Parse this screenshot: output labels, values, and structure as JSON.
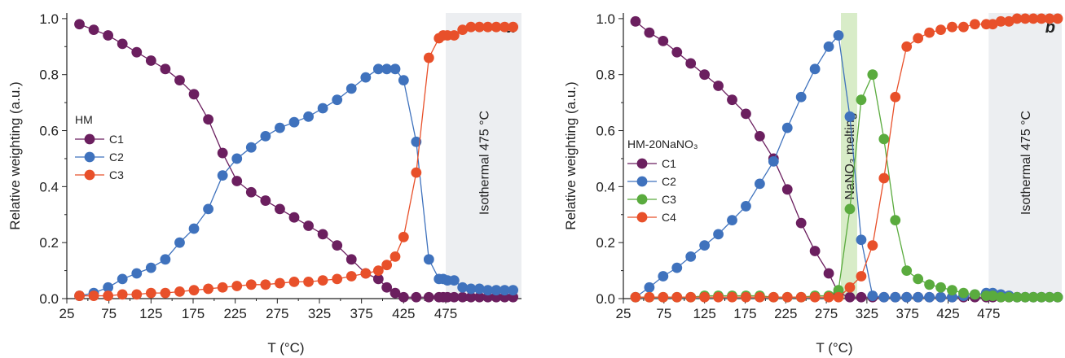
{
  "chart_data": [
    {
      "type": "line",
      "panel_letter": "a",
      "xlabel": "T (°C)",
      "ylabel": "Relative weighting (a.u.)",
      "xlim": [
        25,
        565
      ],
      "ylim": [
        0,
        1.02
      ],
      "x_ticks": [
        "25",
        "75",
        "125",
        "175",
        "225",
        "275",
        "325",
        "375",
        "425",
        "475"
      ],
      "y_ticks": [
        "0.0",
        "0.2",
        "0.4",
        "0.6",
        "0.8",
        "1.0"
      ],
      "legend_title": "HM",
      "legend_position": "middle-left",
      "shaded_regions": [
        {
          "label": "Isothermal  475 °C",
          "color": "#eceef1",
          "x_start": 475,
          "x_end": 565
        }
      ],
      "x": [
        40,
        57,
        74,
        91,
        108,
        125,
        142,
        159,
        176,
        193,
        210,
        227,
        244,
        261,
        278,
        295,
        312,
        329,
        346,
        363,
        380,
        395,
        405,
        415,
        425,
        440,
        455,
        467,
        472,
        477,
        485,
        495,
        505,
        515,
        525,
        535,
        545,
        555
      ],
      "series": [
        {
          "name": "C1",
          "color": "#6b1f5f",
          "values": [
            0.98,
            0.96,
            0.94,
            0.91,
            0.88,
            0.85,
            0.82,
            0.78,
            0.73,
            0.64,
            0.52,
            0.42,
            0.38,
            0.35,
            0.32,
            0.29,
            0.26,
            0.23,
            0.19,
            0.14,
            0.09,
            0.07,
            0.04,
            0.02,
            0.005,
            0.005,
            0.005,
            0.005,
            0.005,
            0.005,
            0.005,
            0.005,
            0.005,
            0.005,
            0.005,
            0.005,
            0.005,
            0.005
          ]
        },
        {
          "name": "C2",
          "color": "#3f72bd",
          "values": [
            0.01,
            0.02,
            0.04,
            0.07,
            0.09,
            0.11,
            0.14,
            0.2,
            0.25,
            0.32,
            0.44,
            0.5,
            0.54,
            0.58,
            0.61,
            0.63,
            0.65,
            0.68,
            0.71,
            0.75,
            0.79,
            0.82,
            0.82,
            0.82,
            0.78,
            0.56,
            0.14,
            0.07,
            0.07,
            0.065,
            0.065,
            0.04,
            0.035,
            0.035,
            0.03,
            0.03,
            0.03,
            0.03
          ]
        },
        {
          "name": "C3",
          "color": "#e8502a",
          "values": [
            0.01,
            0.01,
            0.01,
            0.015,
            0.015,
            0.02,
            0.02,
            0.025,
            0.03,
            0.035,
            0.04,
            0.045,
            0.05,
            0.05,
            0.055,
            0.06,
            0.06,
            0.065,
            0.07,
            0.08,
            0.09,
            0.1,
            0.12,
            0.15,
            0.22,
            0.45,
            0.86,
            0.93,
            0.94,
            0.94,
            0.94,
            0.96,
            0.97,
            0.97,
            0.97,
            0.97,
            0.97,
            0.97
          ]
        }
      ]
    },
    {
      "type": "line",
      "panel_letter": "b",
      "xlabel": "T (°C)",
      "ylabel": "Relative weighting (a.u.)",
      "xlim": [
        25,
        565
      ],
      "ylim": [
        0,
        1.02
      ],
      "x_ticks": [
        "25",
        "75",
        "125",
        "175",
        "225",
        "275",
        "325",
        "375",
        "425",
        "475"
      ],
      "y_ticks": [
        "0.0",
        "0.2",
        "0.4",
        "0.6",
        "0.8",
        "1.0"
      ],
      "legend_title": "HM-20NaNO₃",
      "legend_position": "middle-left",
      "shaded_regions": [
        {
          "label": "NaNO₃ melting",
          "color": "#d8ecc8",
          "x_start": 293,
          "x_end": 313
        },
        {
          "label": "Isothermal  475 °C",
          "color": "#eceef1",
          "x_start": 475,
          "x_end": 565
        }
      ],
      "x": [
        40,
        57,
        74,
        91,
        108,
        125,
        142,
        159,
        176,
        193,
        210,
        227,
        244,
        261,
        278,
        290,
        304,
        318,
        332,
        346,
        360,
        374,
        388,
        402,
        416,
        430,
        444,
        458,
        472,
        480,
        490,
        500,
        510,
        520,
        530,
        540,
        550,
        560
      ],
      "series": [
        {
          "name": "C1",
          "color": "#6b1f5f",
          "values": [
            0.99,
            0.95,
            0.92,
            0.88,
            0.84,
            0.8,
            0.76,
            0.71,
            0.66,
            0.58,
            0.5,
            0.39,
            0.27,
            0.17,
            0.09,
            0.02,
            0.005,
            0.005,
            0.005,
            0.005,
            0.005,
            0.005,
            0.005,
            0.005,
            0.005,
            0.005,
            0.005,
            0.005,
            0.005,
            0.005,
            0.005,
            0.005,
            0.005,
            0.005,
            0.005,
            0.005,
            0.005,
            0.005
          ]
        },
        {
          "name": "C2",
          "color": "#3f72bd",
          "values": [
            0.005,
            0.04,
            0.08,
            0.11,
            0.15,
            0.19,
            0.23,
            0.28,
            0.33,
            0.41,
            0.49,
            0.61,
            0.72,
            0.82,
            0.9,
            0.94,
            0.65,
            0.21,
            0.01,
            0.005,
            0.005,
            0.005,
            0.005,
            0.005,
            0.005,
            0.005,
            0.01,
            0.015,
            0.02,
            0.02,
            0.015,
            0.01,
            0.005,
            0.005,
            0.005,
            0.005,
            0.005,
            0.005
          ]
        },
        {
          "name": "C3",
          "color": "#5aab3e",
          "values": [
            0.005,
            0.005,
            0.005,
            0.005,
            0.005,
            0.01,
            0.01,
            0.01,
            0.01,
            0.01,
            0.005,
            0.005,
            0.005,
            0.01,
            0.01,
            0.03,
            0.32,
            0.71,
            0.8,
            0.57,
            0.28,
            0.1,
            0.07,
            0.05,
            0.04,
            0.03,
            0.02,
            0.015,
            0.01,
            0.01,
            0.005,
            0.005,
            0.005,
            0.005,
            0.005,
            0.005,
            0.005,
            0.005
          ]
        },
        {
          "name": "C4",
          "color": "#e8502a",
          "values": [
            0.005,
            0.005,
            0.005,
            0.005,
            0.005,
            0.005,
            0.005,
            0.005,
            0.005,
            0.005,
            0.005,
            0.005,
            0.005,
            0.005,
            0.005,
            0.005,
            0.04,
            0.08,
            0.19,
            0.43,
            0.72,
            0.9,
            0.93,
            0.95,
            0.96,
            0.97,
            0.97,
            0.98,
            0.98,
            0.98,
            0.99,
            0.99,
            1.0,
            1.0,
            1.0,
            1.0,
            1.0,
            1.0
          ]
        }
      ]
    }
  ]
}
